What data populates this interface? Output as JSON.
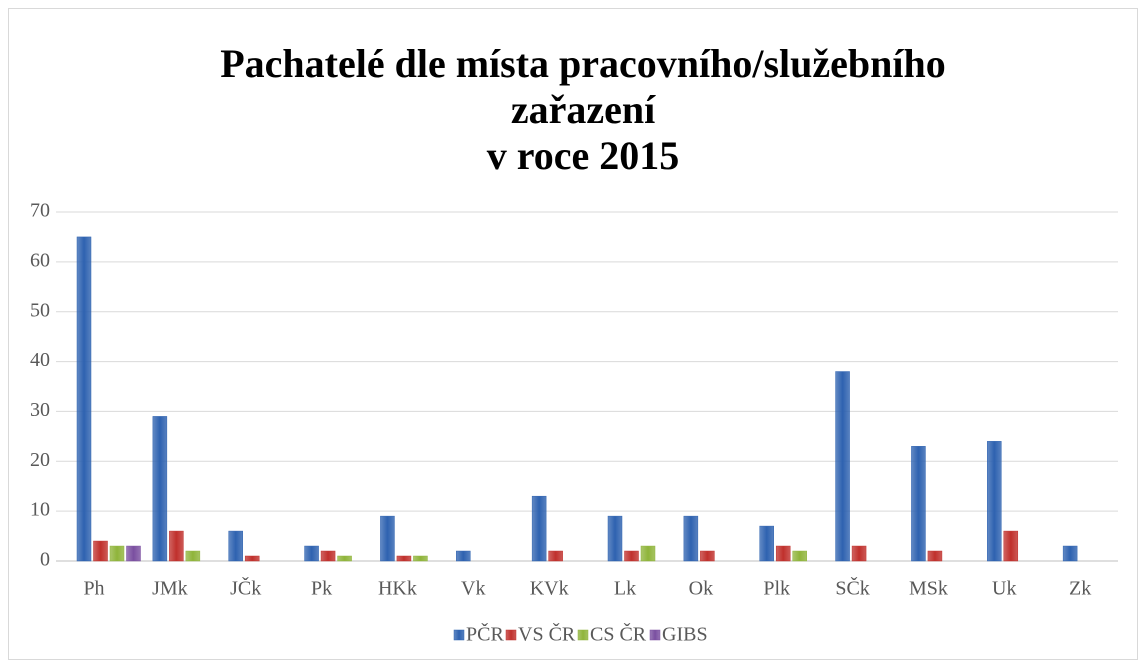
{
  "chart_data": {
    "type": "bar",
    "title": [
      "Pachatelé dle místa pracovního/služebního",
      "zařazení",
      "v roce 2015"
    ],
    "categories": [
      "Ph",
      "JMk",
      "JČk",
      "Pk",
      "HKk",
      "Vk",
      "KVk",
      "Lk",
      "Ok",
      "Plk",
      "SČk",
      "MSk",
      "Uk",
      "Zk"
    ],
    "series": [
      {
        "name": "PČR",
        "color": "#2e62b0",
        "values": [
          65,
          29,
          6,
          3,
          9,
          2,
          13,
          9,
          9,
          7,
          38,
          23,
          24,
          3
        ]
      },
      {
        "name": "VS ČR",
        "color": "#c0302c",
        "values": [
          4,
          6,
          1,
          2,
          1,
          0,
          2,
          2,
          2,
          3,
          3,
          2,
          6,
          0
        ]
      },
      {
        "name": "CS ČR",
        "color": "#8fb43a",
        "values": [
          3,
          2,
          0,
          1,
          1,
          0,
          0,
          3,
          0,
          2,
          0,
          0,
          0,
          0
        ]
      },
      {
        "name": "GIBS",
        "color": "#7a4fa0",
        "values": [
          3,
          0,
          0,
          0,
          0,
          0,
          0,
          0,
          0,
          0,
          0,
          0,
          0,
          0
        ]
      }
    ],
    "ylim": [
      0,
      70
    ],
    "yticks": [
      0,
      10,
      20,
      30,
      40,
      50,
      60,
      70
    ],
    "grid": true,
    "legend": "bottom"
  }
}
